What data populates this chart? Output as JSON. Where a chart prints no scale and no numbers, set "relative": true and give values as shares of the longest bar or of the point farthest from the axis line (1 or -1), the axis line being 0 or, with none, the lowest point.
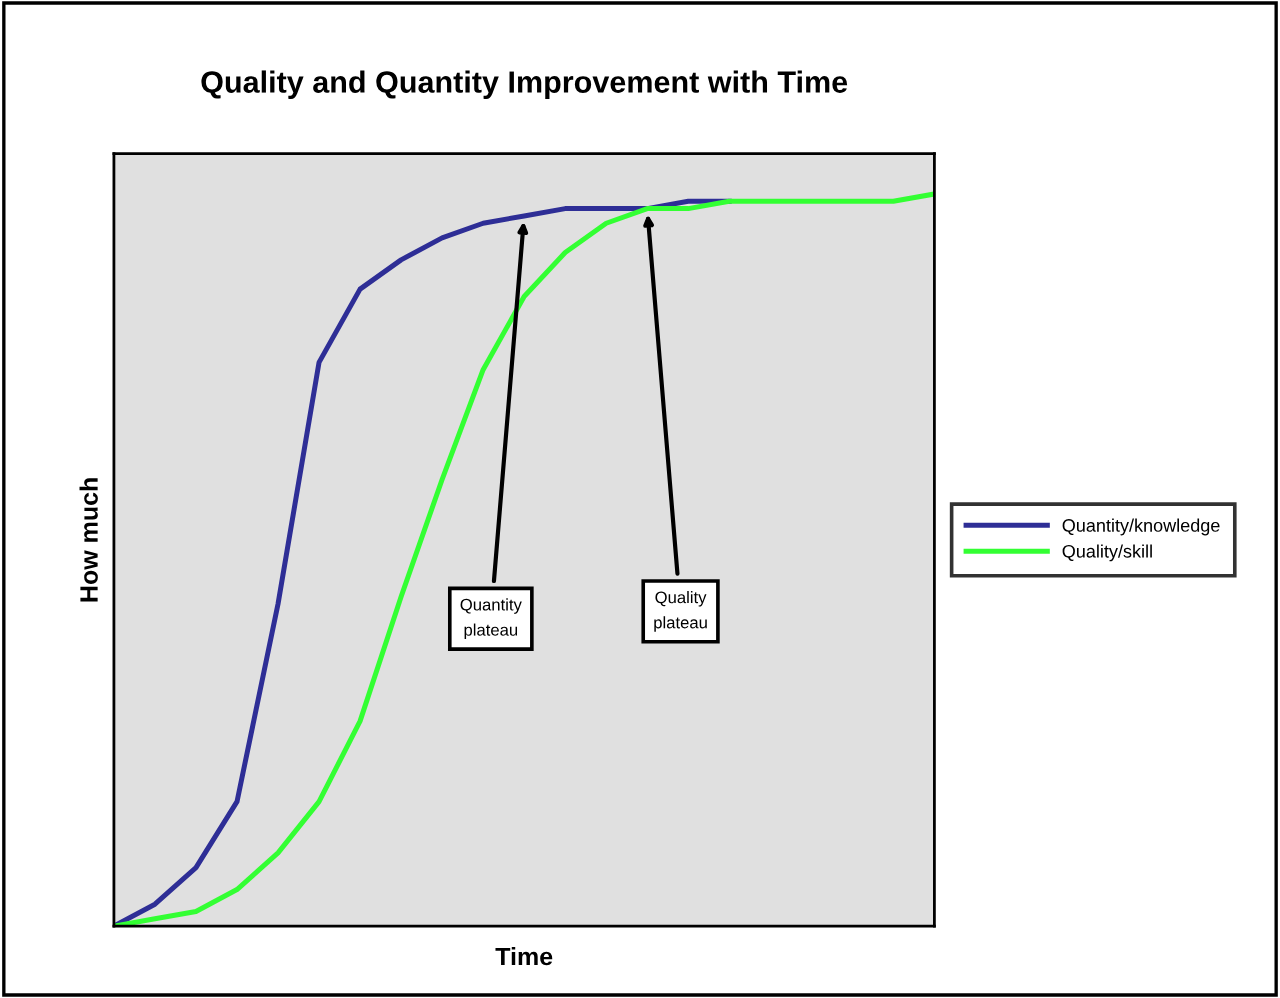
{
  "chart_data": {
    "type": "line",
    "title": "Quality and Quantity Improvement with Time",
    "xlabel": "Time",
    "ylabel": "How much",
    "relative": true,
    "legend": "right",
    "marker": "none",
    "line_style": "solid",
    "categories": [
      null,
      null,
      null,
      null,
      null,
      null,
      null,
      null,
      null,
      null,
      null,
      null,
      null,
      null,
      null,
      null,
      null,
      null,
      null,
      null,
      null
    ],
    "series": [
      {
        "name": "Quantity/knowledge",
        "color": "#2e2e96",
        "values": [
          0,
          0.03,
          0.08,
          0.17,
          0.44,
          0.77,
          0.87,
          0.91,
          0.94,
          0.96,
          0.97,
          0.98,
          0.98,
          0.98,
          0.99,
          0.99,
          null,
          null,
          null,
          null,
          null
        ]
      },
      {
        "name": "Quality/skill",
        "color": "#33ff33",
        "values": [
          0,
          0.01,
          0.02,
          0.05,
          0.1,
          0.17,
          0.28,
          0.45,
          0.61,
          0.76,
          0.86,
          0.92,
          0.96,
          0.98,
          0.98,
          0.99,
          0.99,
          0.99,
          0.99,
          0.99,
          1
        ]
      }
    ],
    "annotations": [
      "Quantity\nplateau",
      "Quality\nplateau"
    ]
  }
}
